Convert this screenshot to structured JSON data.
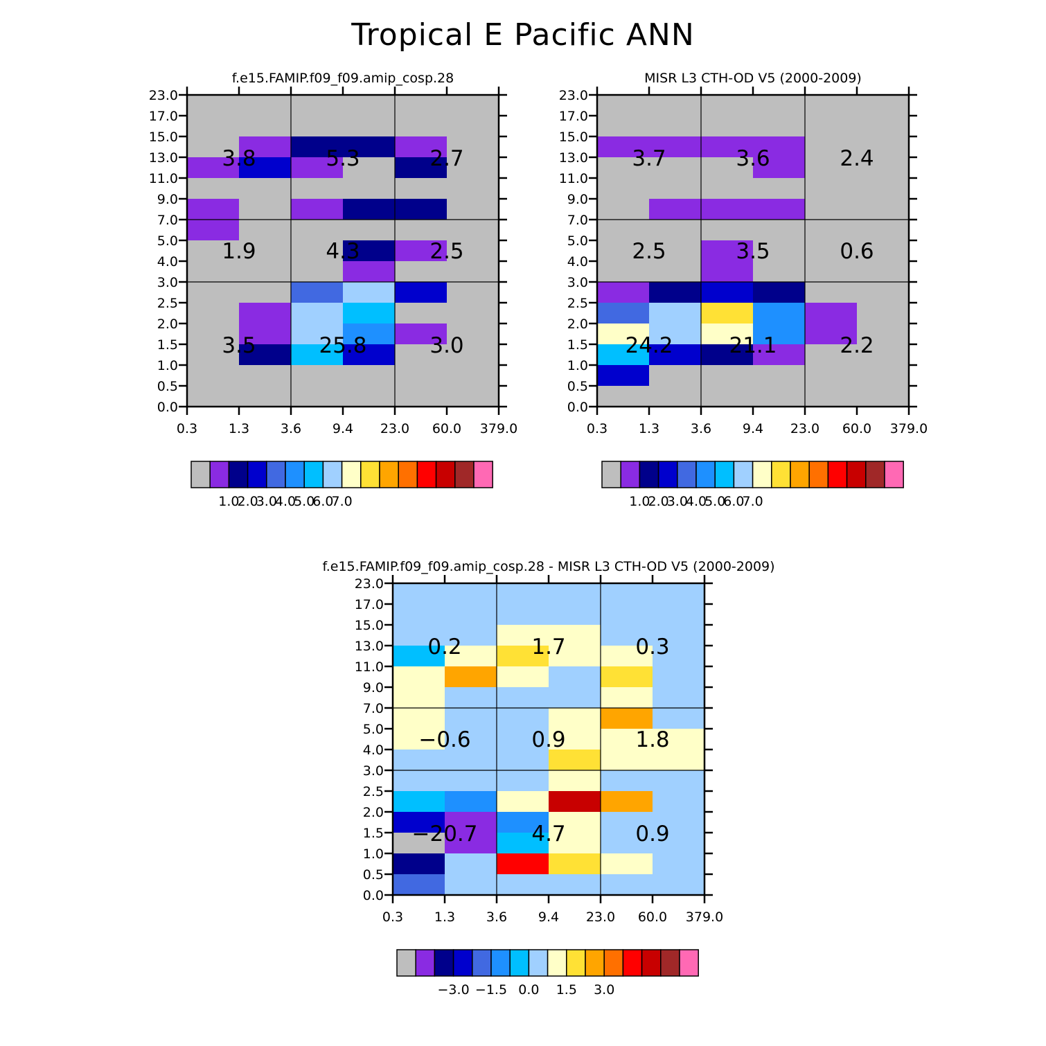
{
  "title": "Tropical E Pacific ANN",
  "palette": [
    "#bebebe",
    "#8a2be2",
    "#00008b",
    "#0000cd",
    "#4169e1",
    "#1e90ff",
    "#00bfff",
    "#a0d0ff",
    "#ffffc8",
    "#ffe135",
    "#ffa500",
    "#ff7000",
    "#ff0000",
    "#c80000",
    "#a02828",
    "#ff69b4"
  ],
  "chart_data": [
    {
      "type": "heatmap",
      "title": "f.e15.FAMIP.f09_f09.amip_cosp.28",
      "x_tick_labels": [
        "0.3",
        "1.3",
        "3.6",
        "9.4",
        "23.0",
        "60.0",
        "379.0"
      ],
      "y_tick_labels": [
        "0.0",
        "0.5",
        "1.0",
        "1.5",
        "2.0",
        "2.5",
        "3.0",
        "4.0",
        "5.0",
        "7.0",
        "9.0",
        "11.0",
        "13.0",
        "15.0",
        "17.0",
        "23.0"
      ],
      "x_ticks_blank_after": [],
      "cell_color_index_by_row_top_to_bottom": [
        [
          0,
          0,
          0,
          0,
          0,
          0
        ],
        [
          0,
          0,
          0,
          0,
          0,
          0
        ],
        [
          0,
          1,
          2,
          2,
          1,
          0
        ],
        [
          1,
          3,
          1,
          0,
          2,
          0
        ],
        [
          0,
          0,
          0,
          0,
          0,
          0
        ],
        [
          1,
          0,
          1,
          2,
          2,
          0
        ],
        [
          1,
          0,
          0,
          0,
          0,
          0
        ],
        [
          0,
          0,
          0,
          2,
          1,
          0
        ],
        [
          0,
          0,
          0,
          1,
          0,
          0
        ],
        [
          0,
          0,
          4,
          7,
          3,
          0
        ],
        [
          0,
          1,
          7,
          6,
          0,
          0
        ],
        [
          0,
          1,
          7,
          5,
          1,
          0
        ],
        [
          0,
          2,
          6,
          3,
          0,
          0
        ],
        [
          0,
          0,
          0,
          0,
          0,
          0
        ],
        [
          0,
          0,
          0,
          0,
          0,
          0
        ]
      ],
      "region_values": [
        "3.8",
        "5.3",
        "2.7",
        "1.9",
        "4.3",
        "2.5",
        "3.5",
        "25.8",
        "3.0"
      ],
      "colorbar_labels": [
        "1.0",
        "2.0",
        "3.0",
        "4.0",
        "5.0",
        "6.0",
        "7.0"
      ]
    },
    {
      "type": "heatmap",
      "title": "MISR L3 CTH-OD V5 (2000-2009)",
      "x_tick_labels": [
        "0.3",
        "1.3",
        "3.6",
        "9.4",
        "23.0",
        "60.0",
        "379.0"
      ],
      "y_tick_labels": [
        "0.0",
        "0.5",
        "1.0",
        "1.5",
        "2.0",
        "2.5",
        "3.0",
        "4.0",
        "5.0",
        "7.0",
        "9.0",
        "11.0",
        "13.0",
        "15.0",
        "17.0",
        "23.0"
      ],
      "cell_color_index_by_row_top_to_bottom": [
        [
          0,
          0,
          0,
          0,
          0,
          0
        ],
        [
          0,
          0,
          0,
          0,
          0,
          0
        ],
        [
          1,
          1,
          1,
          1,
          0,
          0
        ],
        [
          0,
          0,
          0,
          1,
          0,
          0
        ],
        [
          0,
          0,
          0,
          0,
          0,
          0
        ],
        [
          0,
          1,
          1,
          1,
          0,
          0
        ],
        [
          0,
          0,
          0,
          0,
          0,
          0
        ],
        [
          0,
          0,
          1,
          0,
          0,
          0
        ],
        [
          0,
          0,
          1,
          0,
          0,
          0
        ],
        [
          1,
          2,
          3,
          2,
          0,
          0
        ],
        [
          4,
          7,
          9,
          5,
          1,
          0
        ],
        [
          8,
          7,
          8,
          5,
          1,
          0
        ],
        [
          6,
          3,
          2,
          1,
          0,
          0
        ],
        [
          3,
          0,
          0,
          0,
          0,
          0
        ],
        [
          0,
          0,
          0,
          0,
          0,
          0
        ]
      ],
      "region_values": [
        "3.7",
        "3.6",
        "2.4",
        "2.5",
        "3.5",
        "0.6",
        "24.2",
        "21.1",
        "2.2"
      ],
      "colorbar_labels": [
        "1.0",
        "2.0",
        "3.0",
        "4.0",
        "5.0",
        "6.0",
        "7.0"
      ]
    },
    {
      "type": "heatmap",
      "title": "f.e15.FAMIP.f09_f09.amip_cosp.28 - MISR L3 CTH-OD V5 (2000-2009)",
      "x_tick_labels": [
        "0.3",
        "1.3",
        "3.6",
        "9.4",
        "23.0",
        "60.0",
        "379.0"
      ],
      "y_tick_labels": [
        "0.0",
        "0.5",
        "1.0",
        "1.5",
        "2.0",
        "2.5",
        "3.0",
        "4.0",
        "5.0",
        "7.0",
        "9.0",
        "11.0",
        "13.0",
        "15.0",
        "17.0",
        "23.0"
      ],
      "cell_color_index_by_row_top_to_bottom": [
        [
          7,
          7,
          7,
          7,
          7,
          7
        ],
        [
          7,
          7,
          7,
          7,
          7,
          7
        ],
        [
          7,
          7,
          8,
          8,
          7,
          7
        ],
        [
          6,
          8,
          9,
          8,
          8,
          7
        ],
        [
          8,
          10,
          8,
          7,
          9,
          7
        ],
        [
          8,
          7,
          7,
          7,
          8,
          7
        ],
        [
          8,
          7,
          7,
          8,
          10,
          7
        ],
        [
          8,
          7,
          7,
          8,
          8,
          8
        ],
        [
          7,
          7,
          7,
          9,
          8,
          8
        ],
        [
          7,
          7,
          7,
          8,
          7,
          7
        ],
        [
          6,
          5,
          8,
          13,
          10,
          7
        ],
        [
          3,
          1,
          5,
          8,
          7,
          7
        ],
        [
          0,
          1,
          6,
          8,
          7,
          7
        ],
        [
          2,
          7,
          12,
          9,
          8,
          7
        ],
        [
          4,
          7,
          7,
          7,
          7,
          7
        ]
      ],
      "region_values": [
        "0.2",
        "1.7",
        "0.3",
        "−0.6",
        "0.9",
        "1.8",
        "−20.7",
        "4.7",
        "0.9"
      ],
      "colorbar_labels": [
        "−3.0",
        "−1.5",
        "0.0",
        "1.5",
        "3.0"
      ]
    }
  ]
}
